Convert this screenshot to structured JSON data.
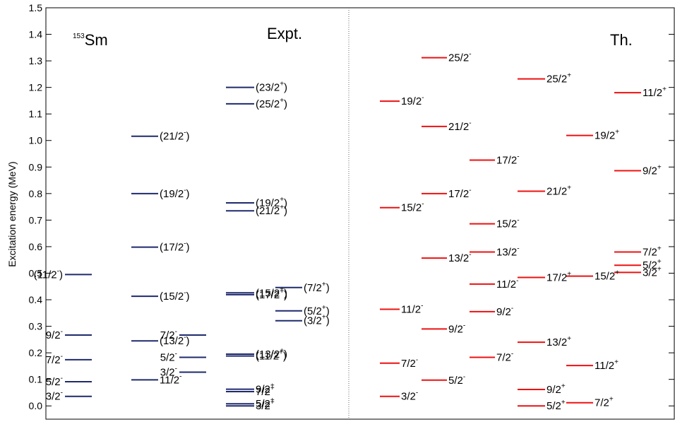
{
  "chart_data": {
    "type": "level-scheme",
    "ylabel": "Excitation energy (MeV)",
    "ylim": [
      -0.05,
      1.5
    ],
    "yticks": [
      0.0,
      0.1,
      0.2,
      0.3,
      0.4,
      0.5,
      0.6,
      0.7,
      0.8,
      0.9,
      1.0,
      1.1,
      1.2,
      1.3,
      1.4,
      1.5
    ],
    "ytick_labels": [
      "0.0",
      "0.1",
      "0.2",
      "0.3",
      "0.4",
      "0.5",
      "0.6",
      "0.7",
      "0.8",
      "0.9",
      "1.0",
      "1.1",
      "1.2",
      "1.3",
      "1.4",
      "1.5"
    ],
    "annotations": {
      "nucleus_mass": "153",
      "nucleus_symbol": "Sm",
      "expt": "Expt.",
      "th": "Th."
    },
    "colors": {
      "expt": "#1f2a6b",
      "th": "#ee1111",
      "axis": "#000000",
      "divider": "#666666"
    },
    "panels": [
      {
        "panel": "Expt.",
        "columns": [
          {
            "column": 1,
            "levels": [
              {
                "energy": 0.036,
                "spin": "3/2",
                "parity": "-"
              },
              {
                "energy": 0.091,
                "spin": "5/2",
                "parity": "-"
              },
              {
                "energy": 0.174,
                "spin": "7/2",
                "parity": "-"
              },
              {
                "energy": 0.267,
                "spin": "9/2",
                "parity": "-"
              },
              {
                "energy": 0.495,
                "spin": "(11/2",
                "parity": "-",
                "suffix": ")"
              }
            ]
          },
          {
            "column": 2,
            "levels": [
              {
                "energy": 0.098,
                "spin": "11/2",
                "parity": "-"
              },
              {
                "energy": 0.245,
                "spin": "(13/2",
                "parity": "-",
                "suffix": ")"
              },
              {
                "energy": 0.413,
                "spin": "(15/2",
                "parity": "-",
                "suffix": ")"
              },
              {
                "energy": 0.598,
                "spin": "(17/2",
                "parity": "-",
                "suffix": ")"
              },
              {
                "energy": 0.8,
                "spin": "(19/2",
                "parity": "-",
                "suffix": ")"
              },
              {
                "energy": 1.016,
                "spin": "(21/2",
                "parity": "-",
                "suffix": ")"
              }
            ]
          },
          {
            "column": 3,
            "levels": [
              {
                "energy": 0.127,
                "spin": "3/2",
                "parity": "-"
              },
              {
                "energy": 0.183,
                "spin": "5/2",
                "parity": "-"
              },
              {
                "energy": 0.267,
                "spin": "7/2",
                "parity": "-"
              }
            ]
          },
          {
            "column": 4,
            "levels": [
              {
                "energy": 0.0,
                "spin": "3/2",
                "parity": "+"
              },
              {
                "energy": 0.008,
                "spin": "5/2",
                "parity": "+"
              },
              {
                "energy": 0.054,
                "spin": "7/2",
                "parity": "+"
              },
              {
                "energy": 0.063,
                "spin": "9/2",
                "parity": "+"
              },
              {
                "energy": 0.188,
                "spin": "(11/2",
                "parity": "+",
                "suffix": ")"
              },
              {
                "energy": 0.195,
                "spin": "(13/2",
                "parity": "+",
                "suffix": ")"
              },
              {
                "energy": 0.419,
                "spin": "(17/2",
                "parity": "+",
                "suffix": ")"
              },
              {
                "energy": 0.426,
                "spin": "(15/2",
                "parity": "+",
                "suffix": ")"
              },
              {
                "energy": 0.735,
                "spin": "(21/2",
                "parity": "+",
                "suffix": ")"
              },
              {
                "energy": 0.765,
                "spin": "(19/2",
                "parity": "+",
                "suffix": ")"
              },
              {
                "energy": 1.138,
                "spin": "(25/2",
                "parity": "+",
                "suffix": ")"
              },
              {
                "energy": 1.2,
                "spin": "(23/2",
                "parity": "+",
                "suffix": ")"
              }
            ]
          },
          {
            "column": 5,
            "levels": [
              {
                "energy": 0.321,
                "spin": "(3/2",
                "parity": "+",
                "suffix": ")"
              },
              {
                "energy": 0.358,
                "spin": "(5/2",
                "parity": "+",
                "suffix": ")"
              },
              {
                "energy": 0.446,
                "spin": "(7/2",
                "parity": "+",
                "suffix": ")"
              }
            ]
          }
        ]
      },
      {
        "panel": "Th.",
        "columns": [
          {
            "column": 1,
            "levels": [
              {
                "energy": 0.036,
                "spin": "3/2",
                "parity": "-"
              },
              {
                "energy": 0.161,
                "spin": "7/2",
                "parity": "-"
              },
              {
                "energy": 0.364,
                "spin": "11/2",
                "parity": "-"
              },
              {
                "energy": 0.747,
                "spin": "15/2",
                "parity": "-"
              },
              {
                "energy": 1.148,
                "spin": "19/2",
                "parity": "-"
              }
            ]
          },
          {
            "column": 2,
            "levels": [
              {
                "energy": 0.097,
                "spin": "5/2",
                "parity": "-"
              },
              {
                "energy": 0.29,
                "spin": "9/2",
                "parity": "-"
              },
              {
                "energy": 0.557,
                "spin": "13/2",
                "parity": "-"
              },
              {
                "energy": 0.8,
                "spin": "17/2",
                "parity": "-"
              },
              {
                "energy": 1.053,
                "spin": "21/2",
                "parity": "-"
              },
              {
                "energy": 1.312,
                "spin": "25/2",
                "parity": "-"
              }
            ]
          },
          {
            "column": 3,
            "levels": [
              {
                "energy": 0.183,
                "spin": "7/2",
                "parity": "-"
              },
              {
                "energy": 0.355,
                "spin": "9/2",
                "parity": "-"
              },
              {
                "energy": 0.459,
                "spin": "11/2",
                "parity": "-"
              },
              {
                "energy": 0.58,
                "spin": "13/2",
                "parity": "-"
              },
              {
                "energy": 0.686,
                "spin": "15/2",
                "parity": "-"
              },
              {
                "energy": 0.926,
                "spin": "17/2",
                "parity": "-"
              }
            ]
          },
          {
            "column": 4,
            "levels": [
              {
                "energy": 0.0,
                "spin": "5/2",
                "parity": "+"
              },
              {
                "energy": 0.062,
                "spin": "9/2",
                "parity": "+"
              },
              {
                "energy": 0.24,
                "spin": "13/2",
                "parity": "+"
              },
              {
                "energy": 0.484,
                "spin": "17/2",
                "parity": "+"
              },
              {
                "energy": 0.809,
                "spin": "21/2",
                "parity": "+"
              },
              {
                "energy": 1.232,
                "spin": "25/2",
                "parity": "+"
              }
            ]
          },
          {
            "column": 5,
            "levels": [
              {
                "energy": 0.012,
                "spin": "7/2",
                "parity": "+"
              },
              {
                "energy": 0.152,
                "spin": "11/2",
                "parity": "+"
              },
              {
                "energy": 0.489,
                "spin": "15/2",
                "parity": "+"
              },
              {
                "energy": 1.019,
                "spin": "19/2",
                "parity": "+"
              }
            ]
          },
          {
            "column": 6,
            "levels": [
              {
                "energy": 0.503,
                "spin": "3/2",
                "parity": "+"
              },
              {
                "energy": 0.53,
                "spin": "5/2",
                "parity": "+"
              },
              {
                "energy": 0.58,
                "spin": "7/2",
                "parity": "+"
              },
              {
                "energy": 0.886,
                "spin": "9/2",
                "parity": "+"
              },
              {
                "energy": 1.18,
                "spin": "11/2",
                "parity": "+"
              }
            ]
          }
        ]
      }
    ]
  }
}
